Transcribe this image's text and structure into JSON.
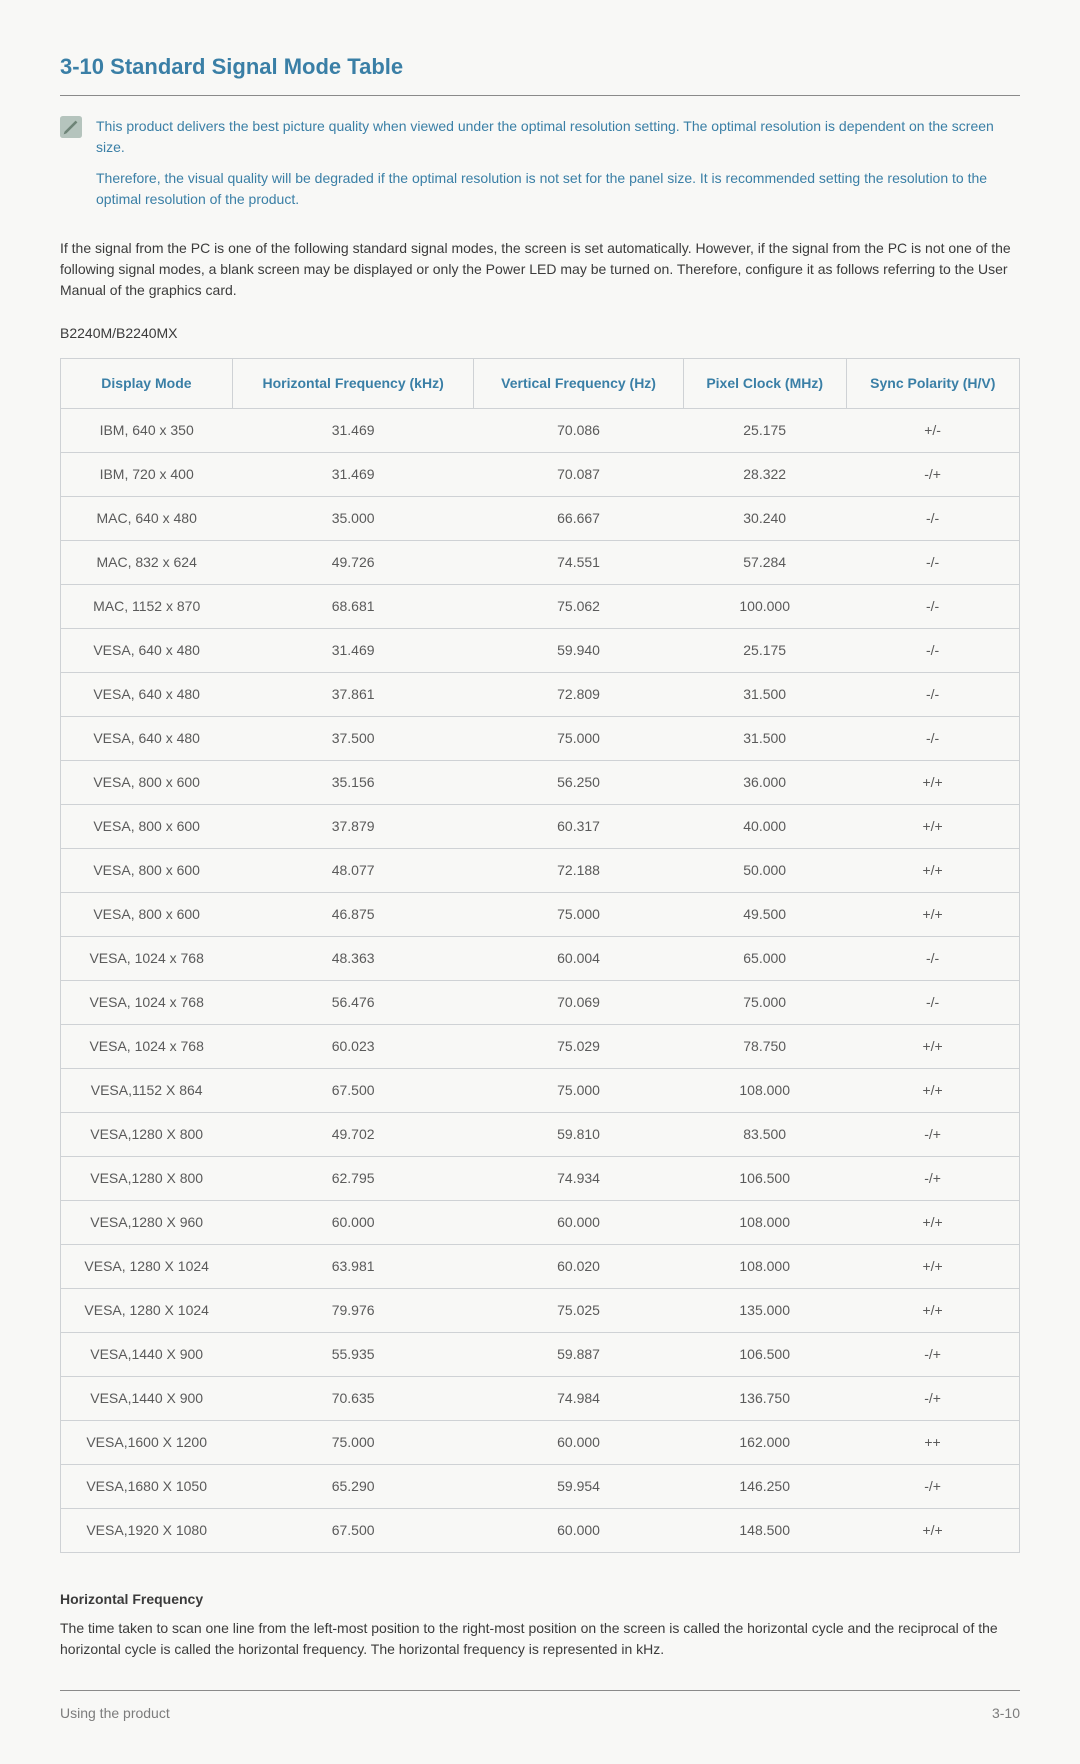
{
  "section_title": "3-10  Standard Signal Mode Table",
  "note": {
    "p1": "This product delivers the best picture quality when viewed under the optimal resolution setting. The optimal resolution is dependent on the screen size.",
    "p2": "Therefore, the visual quality will be degraded if the optimal resolution is not set for the panel size. It is recommended setting the resolution to the optimal resolution of the product."
  },
  "body_para": "If the signal from the PC is one of the following standard signal modes, the screen is set automatically. However, if the signal from the PC is not one of the following signal modes, a blank screen may be displayed or only the Power LED may be turned on. Therefore, configure it as follows referring to the User Manual of the graphics card.",
  "model": "B2240M/B2240MX",
  "columns": [
    "Display Mode",
    "Horizontal Frequency (kHz)",
    "Vertical Frequency (Hz)",
    "Pixel Clock (MHz)",
    "Sync Polarity (H/V)"
  ],
  "rows": [
    [
      "IBM, 640 x 350",
      "31.469",
      "70.086",
      "25.175",
      "+/-"
    ],
    [
      "IBM, 720 x 400",
      "31.469",
      "70.087",
      "28.322",
      "-/+"
    ],
    [
      "MAC, 640 x 480",
      "35.000",
      "66.667",
      "30.240",
      "-/-"
    ],
    [
      "MAC, 832 x 624",
      "49.726",
      "74.551",
      "57.284",
      "-/-"
    ],
    [
      "MAC, 1152 x 870",
      "68.681",
      "75.062",
      "100.000",
      "-/-"
    ],
    [
      "VESA, 640 x 480",
      "31.469",
      "59.940",
      "25.175",
      "-/-"
    ],
    [
      "VESA, 640 x 480",
      "37.861",
      "72.809",
      "31.500",
      "-/-"
    ],
    [
      "VESA, 640 x 480",
      "37.500",
      "75.000",
      "31.500",
      "-/-"
    ],
    [
      "VESA, 800 x 600",
      "35.156",
      "56.250",
      "36.000",
      "+/+"
    ],
    [
      "VESA, 800 x 600",
      "37.879",
      "60.317",
      "40.000",
      "+/+"
    ],
    [
      "VESA, 800 x 600",
      "48.077",
      "72.188",
      "50.000",
      "+/+"
    ],
    [
      "VESA, 800 x 600",
      "46.875",
      "75.000",
      "49.500",
      "+/+"
    ],
    [
      "VESA, 1024 x 768",
      "48.363",
      "60.004",
      "65.000",
      "-/-"
    ],
    [
      "VESA, 1024 x 768",
      "56.476",
      "70.069",
      "75.000",
      "-/-"
    ],
    [
      "VESA, 1024 x 768",
      "60.023",
      "75.029",
      "78.750",
      "+/+"
    ],
    [
      "VESA,1152 X 864",
      "67.500",
      "75.000",
      "108.000",
      "+/+"
    ],
    [
      "VESA,1280 X 800",
      "49.702",
      "59.810",
      "83.500",
      "-/+"
    ],
    [
      "VESA,1280 X 800",
      "62.795",
      "74.934",
      "106.500",
      "-/+"
    ],
    [
      "VESA,1280 X 960",
      "60.000",
      "60.000",
      "108.000",
      "+/+"
    ],
    [
      "VESA, 1280 X 1024",
      "63.981",
      "60.020",
      "108.000",
      "+/+"
    ],
    [
      "VESA, 1280 X 1024",
      "79.976",
      "75.025",
      "135.000",
      "+/+"
    ],
    [
      "VESA,1440 X 900",
      "55.935",
      "59.887",
      "106.500",
      "-/+"
    ],
    [
      "VESA,1440 X 900",
      "70.635",
      "74.984",
      "136.750",
      "-/+"
    ],
    [
      "VESA,1600 X 1200",
      "75.000",
      "60.000",
      "162.000",
      "++"
    ],
    [
      "VESA,1680 X 1050",
      "65.290",
      "59.954",
      "146.250",
      "-/+"
    ],
    [
      "VESA,1920 X 1080",
      "67.500",
      "60.000",
      "148.500",
      "+/+"
    ]
  ],
  "definition": {
    "title": "Horizontal Frequency",
    "body": "The time taken to scan one line from the left-most position to the right-most position on the screen is called the horizontal cycle and the reciprocal of the horizontal cycle is called the horizontal frequency. The horizontal frequency is represented in kHz."
  },
  "footer": {
    "left": "Using the product",
    "right": "3-10"
  },
  "colors": {
    "accent": "#3a7fa6",
    "rule": "#8a8a8a",
    "table_border": "#cfd2d5",
    "background": "#f8f8f6",
    "icon_bg": "#b5c4bd",
    "icon_fg": "#6e8477"
  }
}
